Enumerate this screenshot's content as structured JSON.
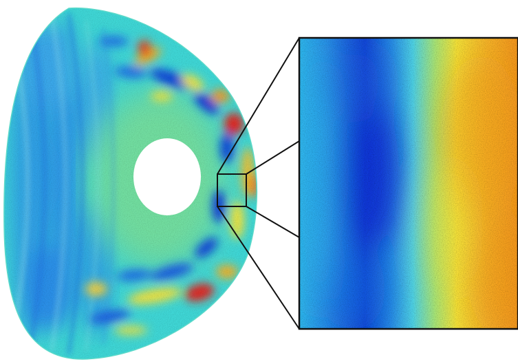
{
  "figure": {
    "panels": [
      {
        "name": "cross-section",
        "shape": "D-shaped annulus",
        "colormap": "jet"
      },
      {
        "name": "zoom-inset",
        "shape": "rectangle",
        "colormap": "jet"
      }
    ],
    "colors": {
      "background": "#ffffff",
      "outline": "#111111",
      "deep_blue": "#0a2fd6",
      "blue": "#1f7be8",
      "cyan": "#2fd0ec",
      "teal": "#53e0c4",
      "green": "#7fe38c",
      "yellow": "#f6ea3a",
      "orange": "#f6a01c",
      "red": "#e3231a"
    }
  }
}
